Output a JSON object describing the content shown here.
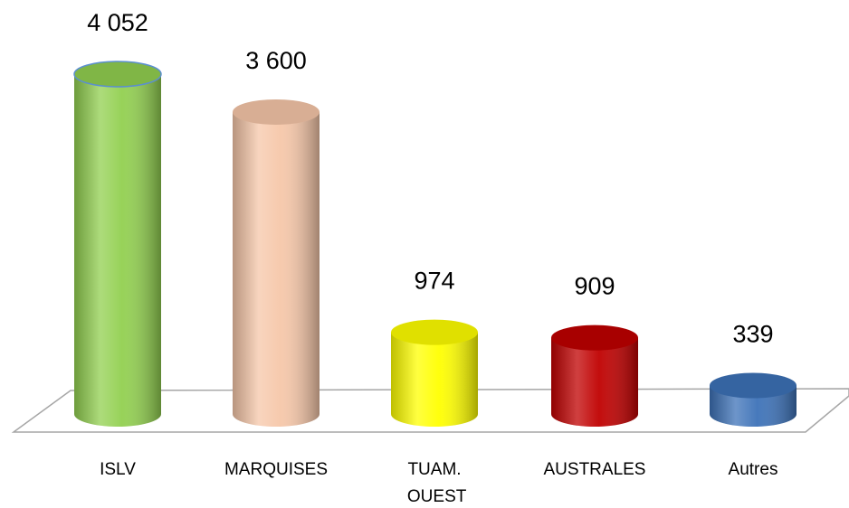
{
  "chart_data": {
    "type": "bar",
    "categories": [
      "ISLV",
      "MARQUISES",
      "TUAM. OUEST",
      "AUSTRALES",
      "Autres"
    ],
    "values": [
      4052,
      3600,
      974,
      909,
      339
    ],
    "value_labels": [
      "4 052",
      "3 600",
      "974",
      "909",
      "339"
    ],
    "colors": [
      "#92d050",
      "#f6c7a9",
      "#ffff00",
      "#c00000",
      "#3d72b8"
    ]
  }
}
